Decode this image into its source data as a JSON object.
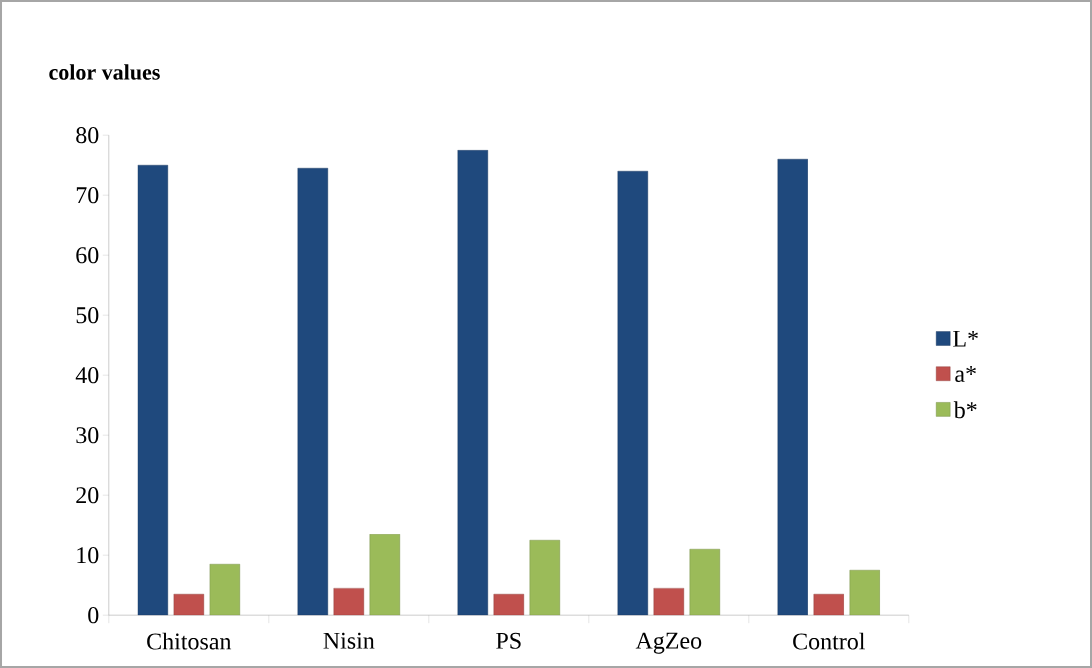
{
  "chart_data": {
    "type": "bar",
    "title": "color values",
    "categories": [
      "Chitosan",
      "Nisin",
      "PS",
      "AgZeo",
      "Control"
    ],
    "series": [
      {
        "name": "L*",
        "color": "#1f497d",
        "values": [
          75,
          74.5,
          77.5,
          74,
          76
        ]
      },
      {
        "name": "a*",
        "color": "#c0504d",
        "values": [
          3.5,
          4.5,
          3.5,
          4.5,
          3.5
        ]
      },
      {
        "name": "b*",
        "color": "#9bbb59",
        "values": [
          8.5,
          13.5,
          12.5,
          11,
          7.5
        ]
      }
    ],
    "ylim": [
      0,
      80
    ],
    "yticks": [
      0,
      10,
      20,
      30,
      40,
      50,
      60,
      70,
      80
    ],
    "grid": false,
    "legend": "right"
  }
}
